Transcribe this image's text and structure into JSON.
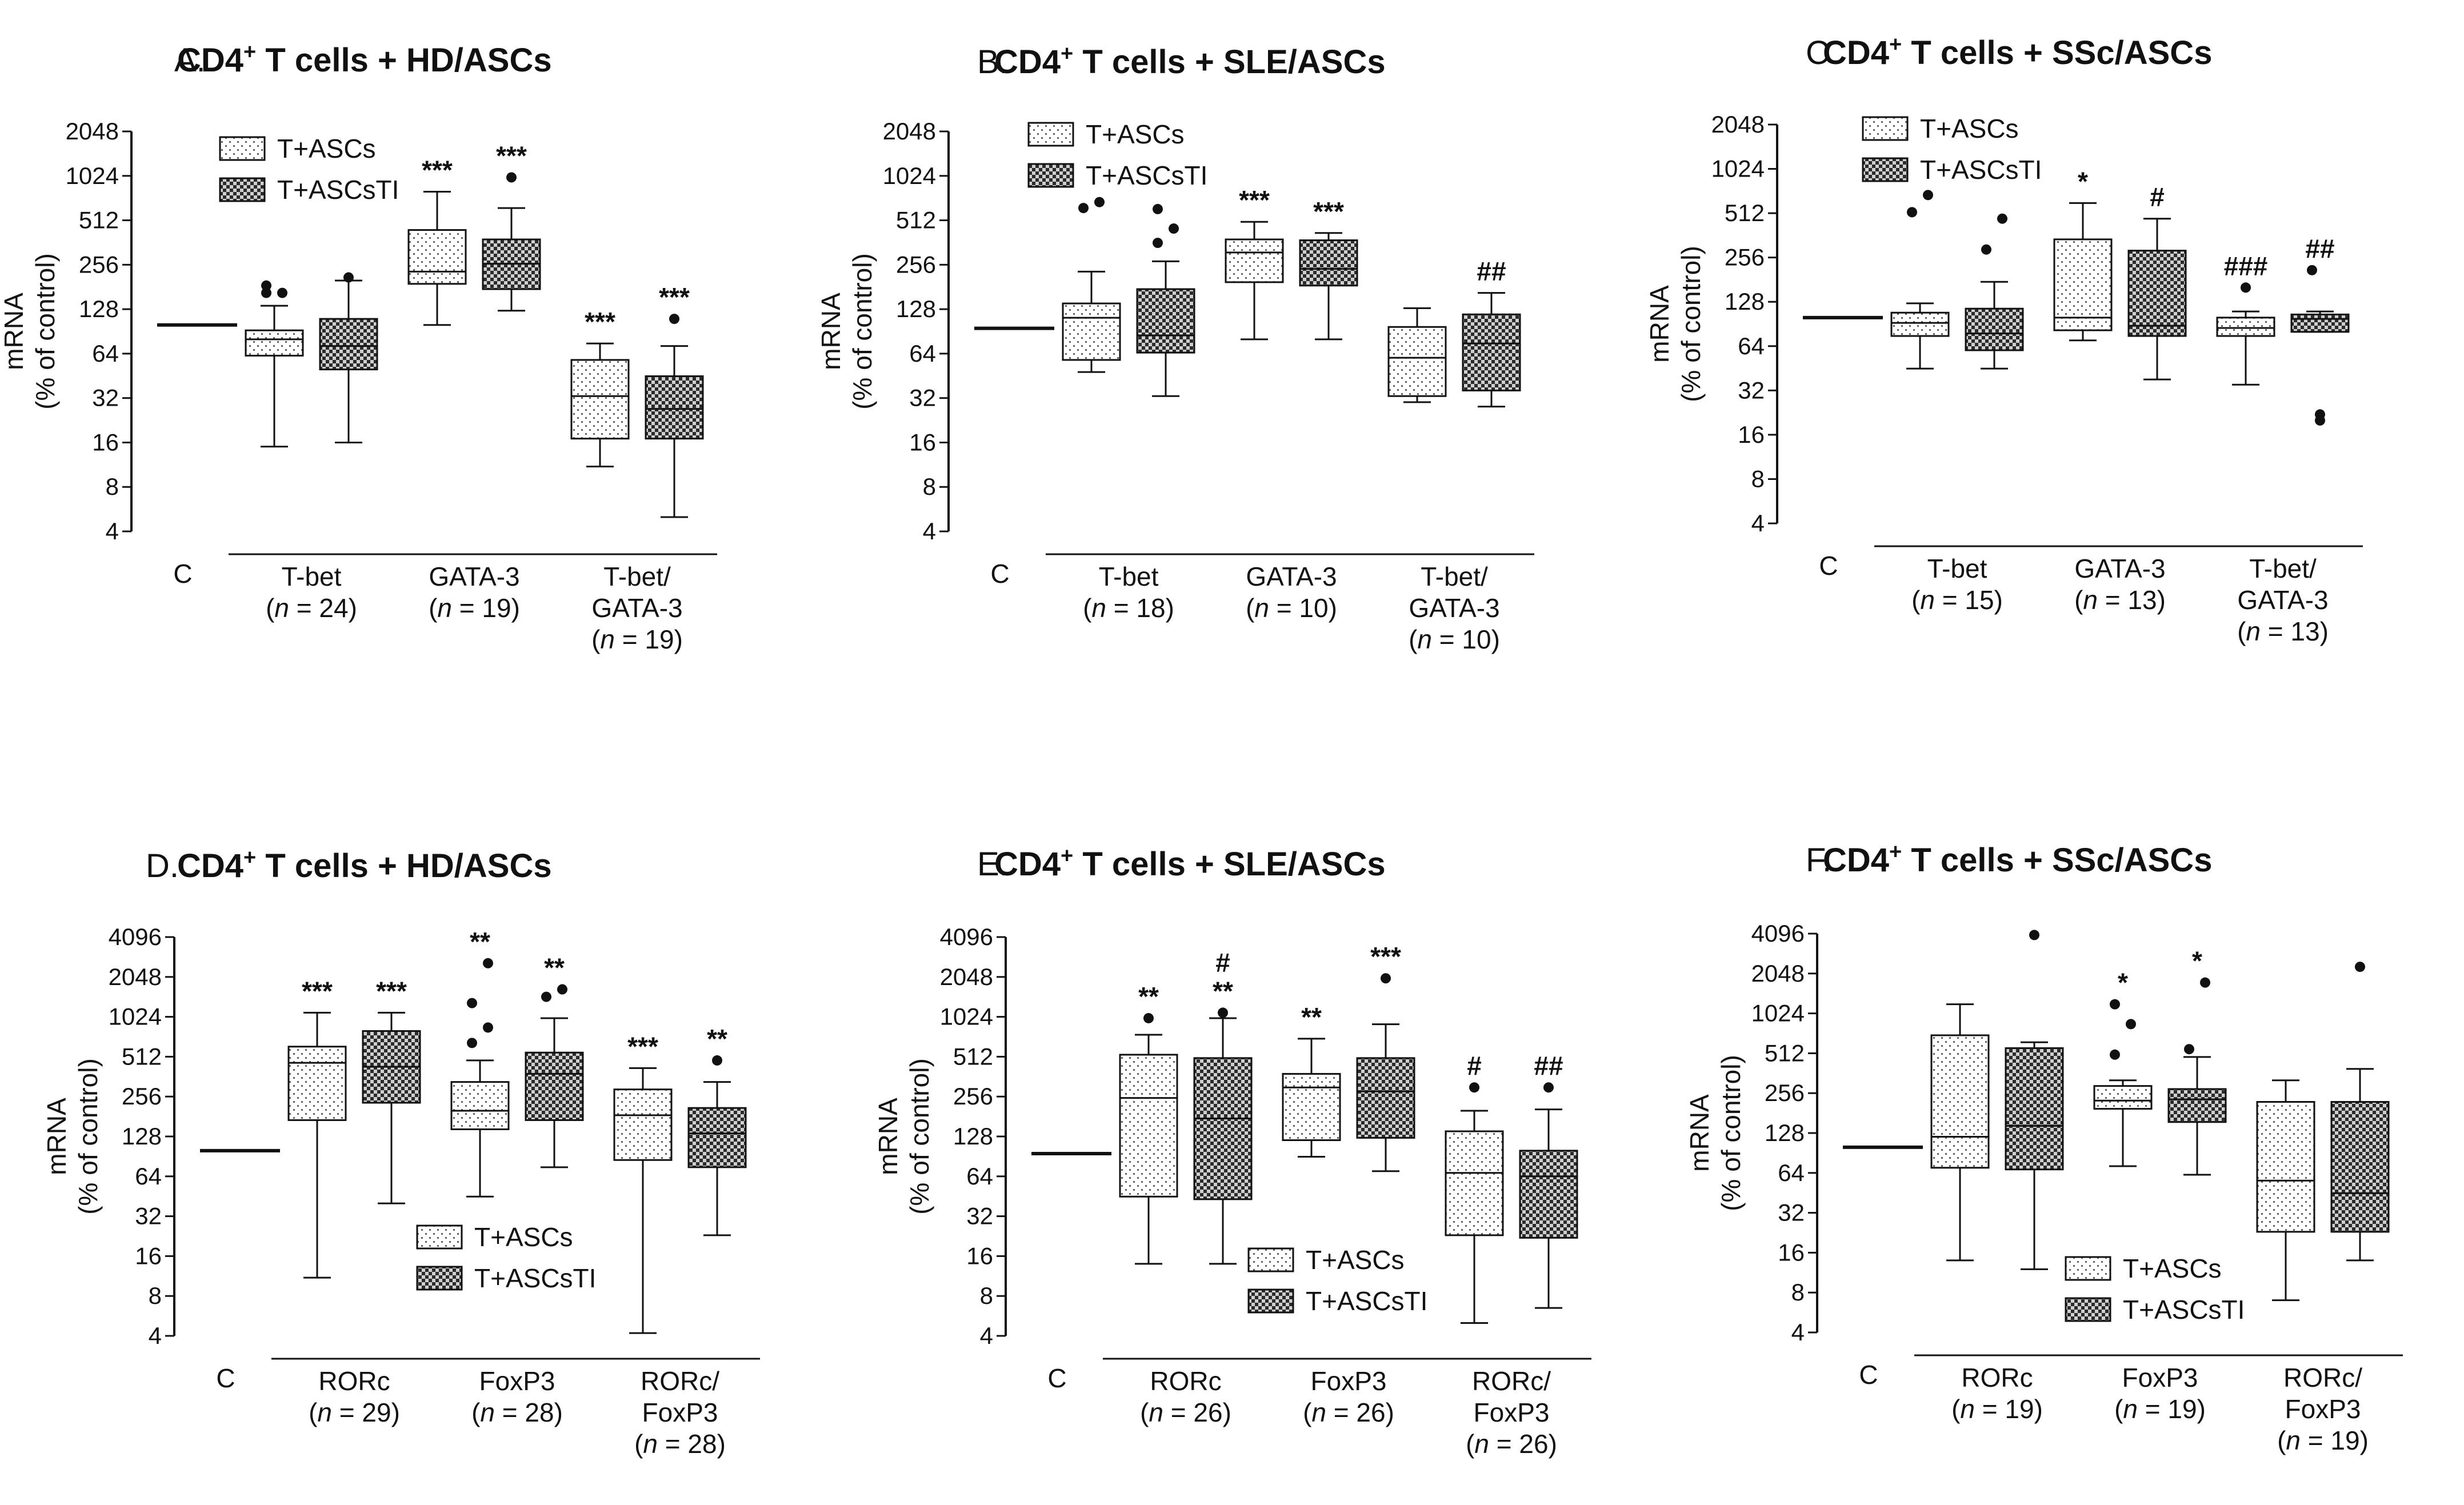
{
  "legend": {
    "series": [
      {
        "name": "T+ASCs",
        "pattern": "dots"
      },
      {
        "name": "T+ASCsTI",
        "pattern": "checker"
      }
    ]
  },
  "colors": {
    "ink": "#111111",
    "dots_fill": "#ffffff",
    "checker_dark": "#2b2b2b",
    "checker_light": "#d0d0d0"
  },
  "chart_data": [
    {
      "id": "A",
      "type": "box",
      "letter": "A.",
      "title": {
        "pre": "CD4",
        "sup": "+",
        "post": " T cells + HD/ASCs"
      },
      "ylabel": [
        "mRNA",
        "(% of control)"
      ],
      "yscale": "log2",
      "ylim": [
        4,
        2048
      ],
      "yticks": [
        "4",
        "8",
        "16",
        "32",
        "64",
        "128",
        "256",
        "512",
        "1024",
        "2048"
      ],
      "control": {
        "label": "C",
        "value": 100
      },
      "legend_position": "top-left",
      "groups": [
        {
          "name": [
            "T-bet"
          ],
          "n": "24",
          "boxes": [
            {
              "series": "T+ASCs",
              "min": 15,
              "q1": 62,
              "median": 80,
              "q3": 92,
              "max": 135,
              "outliers": [
                185,
                165,
                165
              ],
              "sig": ""
            },
            {
              "series": "T+ASCsTI",
              "min": 16,
              "q1": 50,
              "median": 72,
              "q3": 110,
              "max": 200,
              "outliers": [
                210
              ],
              "sig": ""
            }
          ]
        },
        {
          "name": [
            "GATA-3"
          ],
          "n": "19",
          "boxes": [
            {
              "series": "T+ASCs",
              "min": 100,
              "q1": 190,
              "median": 230,
              "q3": 440,
              "max": 800,
              "outliers": [],
              "sig": "***"
            },
            {
              "series": "T+ASCsTI",
              "min": 125,
              "q1": 175,
              "median": 260,
              "q3": 380,
              "max": 620,
              "outliers": [
                1000
              ],
              "sig": "***"
            }
          ]
        },
        {
          "name": [
            "T-bet/",
            "GATA-3"
          ],
          "n": "19",
          "boxes": [
            {
              "series": "T+ASCs",
              "min": 11,
              "q1": 17,
              "median": 33,
              "q3": 58,
              "max": 75,
              "outliers": [],
              "sig": "***"
            },
            {
              "series": "T+ASCsTI",
              "min": 5,
              "q1": 17,
              "median": 27,
              "q3": 45,
              "max": 72,
              "outliers": [
                110
              ],
              "sig": "***"
            }
          ]
        }
      ]
    },
    {
      "id": "B",
      "type": "box",
      "letter": "B.",
      "title": {
        "pre": "CD4",
        "sup": "+",
        "post": " T cells + SLE/ASCs"
      },
      "ylabel": [
        "mRNA",
        "(% of control)"
      ],
      "yscale": "log2",
      "ylim": [
        4,
        2048
      ],
      "yticks": [
        "4",
        "8",
        "16",
        "32",
        "64",
        "128",
        "256",
        "512",
        "1024",
        "2048"
      ],
      "control": {
        "label": "C",
        "value": 95
      },
      "legend_position": "top-left",
      "groups": [
        {
          "name": [
            "T-bet"
          ],
          "n": "18",
          "boxes": [
            {
              "series": "T+ASCs",
              "min": 48,
              "q1": 58,
              "median": 112,
              "q3": 140,
              "max": 230,
              "outliers": [
                620,
                680
              ],
              "sig": ""
            },
            {
              "series": "T+ASCsTI",
              "min": 33,
              "q1": 65,
              "median": 85,
              "q3": 175,
              "max": 270,
              "outliers": [
                360,
                450,
                610
              ],
              "sig": ""
            }
          ]
        },
        {
          "name": [
            "GATA-3"
          ],
          "n": "10",
          "boxes": [
            {
              "series": "T+ASCs",
              "min": 80,
              "q1": 195,
              "median": 310,
              "q3": 380,
              "max": 500,
              "outliers": [],
              "sig": "***"
            },
            {
              "series": "T+ASCsTI",
              "min": 80,
              "q1": 185,
              "median": 240,
              "q3": 375,
              "max": 420,
              "outliers": [],
              "sig": "***"
            }
          ]
        },
        {
          "name": [
            "T-bet/",
            "GATA-3"
          ],
          "n": "10",
          "boxes": [
            {
              "series": "T+ASCs",
              "min": 30,
              "q1": 33,
              "median": 60,
              "q3": 97,
              "max": 130,
              "outliers": [],
              "sig": ""
            },
            {
              "series": "T+ASCsTI",
              "min": 28,
              "q1": 36,
              "median": 75,
              "q3": 118,
              "max": 165,
              "outliers": [],
              "sig": "##"
            }
          ]
        }
      ]
    },
    {
      "id": "C",
      "type": "box",
      "letter": "C.",
      "title": {
        "pre": "CD4",
        "sup": "+",
        "post": " T cells + SSc/ASCs"
      },
      "ylabel": [
        "mRNA",
        "(% of control)"
      ],
      "yscale": "log2",
      "ylim": [
        4,
        2048
      ],
      "yticks": [
        "4",
        "8",
        "16",
        "32",
        "64",
        "128",
        "256",
        "512",
        "1024",
        "2048"
      ],
      "control": {
        "label": "C",
        "value": 100
      },
      "legend_position": "top-left",
      "groups": [
        {
          "name": [
            "T-bet"
          ],
          "n": "15",
          "boxes": [
            {
              "series": "T+ASCs",
              "min": 45,
              "q1": 75,
              "median": 92,
              "q3": 108,
              "max": 125,
              "outliers": [
                520,
                680
              ],
              "sig": ""
            },
            {
              "series": "T+ASCsTI",
              "min": 45,
              "q1": 60,
              "median": 78,
              "q3": 115,
              "max": 175,
              "outliers": [
                290,
                470
              ],
              "sig": ""
            }
          ]
        },
        {
          "name": [
            "GATA-3"
          ],
          "n": "13",
          "boxes": [
            {
              "series": "T+ASCs",
              "min": 70,
              "q1": 82,
              "median": 100,
              "q3": 340,
              "max": 600,
              "outliers": [],
              "sig": "*"
            },
            {
              "series": "T+ASCsTI",
              "min": 38,
              "q1": 75,
              "median": 88,
              "q3": 285,
              "max": 470,
              "outliers": [],
              "sig": "#"
            }
          ]
        },
        {
          "name": [
            "T-bet/",
            "GATA-3"
          ],
          "n": "13",
          "boxes": [
            {
              "series": "T+ASCs",
              "min": 35,
              "q1": 75,
              "median": 85,
              "q3": 100,
              "max": 110,
              "outliers": [
                160
              ],
              "sig": "###"
            },
            {
              "series": "T+ASCsTI",
              "min": 80,
              "q1": 80,
              "median": 98,
              "q3": 105,
              "max": 110,
              "outliers": [
                20,
                22,
                210
              ],
              "sig": "##"
            }
          ]
        }
      ]
    },
    {
      "id": "D",
      "type": "box",
      "letter": "D.",
      "title": {
        "pre": "CD4",
        "sup": "+",
        "post": " T cells + HD/ASCs"
      },
      "ylabel": [
        "mRNA",
        "(% of control)"
      ],
      "yscale": "log2",
      "ylim": [
        4,
        4096
      ],
      "yticks": [
        "4",
        "8",
        "16",
        "32",
        "64",
        "128",
        "256",
        "512",
        "1024",
        "2048",
        "4096"
      ],
      "control": {
        "label": "C",
        "value": 100
      },
      "legend_position": "lower-center",
      "groups": [
        {
          "name": [
            "RORc"
          ],
          "n": "29",
          "boxes": [
            {
              "series": "T+ASCs",
              "min": 11,
              "q1": 170,
              "median": 460,
              "q3": 610,
              "max": 1100,
              "outliers": [],
              "sig": "***"
            },
            {
              "series": "T+ASCsTI",
              "min": 40,
              "q1": 230,
              "median": 430,
              "q3": 800,
              "max": 1100,
              "outliers": [],
              "sig": "***"
            }
          ]
        },
        {
          "name": [
            "FoxP3"
          ],
          "n": "28",
          "boxes": [
            {
              "series": "T+ASCs",
              "min": 45,
              "q1": 145,
              "median": 200,
              "q3": 330,
              "max": 480,
              "outliers": [
                650,
                850,
                1300,
                2600
              ],
              "sig": "**"
            },
            {
              "series": "T+ASCsTI",
              "min": 75,
              "q1": 170,
              "median": 380,
              "q3": 550,
              "max": 1000,
              "outliers": [
                1450,
                1650
              ],
              "sig": "**"
            }
          ]
        },
        {
          "name": [
            "RORc/",
            "FoxP3"
          ],
          "n": "28",
          "boxes": [
            {
              "series": "T+ASCs",
              "min": 4.2,
              "q1": 85,
              "median": 185,
              "q3": 290,
              "max": 420,
              "outliers": [],
              "sig": "***"
            },
            {
              "series": "T+ASCsTI",
              "min": 23,
              "q1": 75,
              "median": 135,
              "q3": 210,
              "max": 330,
              "outliers": [
                480
              ],
              "sig": "**"
            }
          ]
        }
      ]
    },
    {
      "id": "E",
      "type": "box",
      "letter": "E.",
      "title": {
        "pre": "CD4",
        "sup": "+",
        "post": " T cells + SLE/ASCs"
      },
      "ylabel": [
        "mRNA",
        "(% of control)"
      ],
      "yscale": "log2",
      "ylim": [
        4,
        4096
      ],
      "yticks": [
        "4",
        "8",
        "16",
        "32",
        "64",
        "128",
        "256",
        "512",
        "1024",
        "2048",
        "4096"
      ],
      "control": {
        "label": "C",
        "value": 95
      },
      "legend_position": "lower-center",
      "groups": [
        {
          "name": [
            "RORc"
          ],
          "n": "26",
          "boxes": [
            {
              "series": "T+ASCs",
              "min": 14,
              "q1": 45,
              "median": 250,
              "q3": 530,
              "max": 750,
              "outliers": [
                1000
              ],
              "sig": "**"
            },
            {
              "series": "T+ASCsTI",
              "min": 14,
              "q1": 43,
              "median": 175,
              "q3": 500,
              "max": 1000,
              "outliers": [
                1100
              ],
              "sig": "**",
              "sig2": "#"
            }
          ]
        },
        {
          "name": [
            "FoxP3"
          ],
          "n": "26",
          "boxes": [
            {
              "series": "T+ASCs",
              "min": 90,
              "q1": 120,
              "median": 300,
              "q3": 380,
              "max": 700,
              "outliers": [],
              "sig": "**"
            },
            {
              "series": "T+ASCsTI",
              "min": 70,
              "q1": 125,
              "median": 280,
              "q3": 500,
              "max": 900,
              "outliers": [
                2000
              ],
              "sig": "***"
            }
          ]
        },
        {
          "name": [
            "RORc/",
            "FoxP3"
          ],
          "n": "26",
          "boxes": [
            {
              "series": "T+ASCs",
              "min": 5,
              "q1": 23,
              "median": 68,
              "q3": 140,
              "max": 200,
              "outliers": [
                300
              ],
              "sig": "#"
            },
            {
              "series": "T+ASCsTI",
              "min": 6.5,
              "q1": 22,
              "median": 64,
              "q3": 100,
              "max": 205,
              "outliers": [
                300
              ],
              "sig": "##"
            }
          ]
        }
      ]
    },
    {
      "id": "F",
      "type": "box",
      "letter": "F.",
      "title": {
        "pre": "CD4",
        "sup": "+",
        "post": " T cells + SSc/ASCs"
      },
      "ylabel": [
        "mRNA",
        "(% of control)"
      ],
      "yscale": "log2",
      "ylim": [
        4,
        4096
      ],
      "yticks": [
        "4",
        "8",
        "16",
        "32",
        "64",
        "128",
        "256",
        "512",
        "1024",
        "2048",
        "4096"
      ],
      "control": {
        "label": "C",
        "value": 100
      },
      "legend_position": "lower-center",
      "groups": [
        {
          "name": [
            "RORc"
          ],
          "n": "19",
          "boxes": [
            {
              "series": "T+ASCs",
              "min": 14,
              "q1": 70,
              "median": 120,
              "q3": 700,
              "max": 1200,
              "outliers": [],
              "sig": ""
            },
            {
              "series": "T+ASCsTI",
              "min": 12,
              "q1": 68,
              "median": 145,
              "q3": 560,
              "max": 620,
              "outliers": [
                4000
              ],
              "sig": ""
            }
          ]
        },
        {
          "name": [
            "FoxP3"
          ],
          "n": "19",
          "boxes": [
            {
              "series": "T+ASCs",
              "min": 72,
              "q1": 195,
              "median": 225,
              "q3": 290,
              "max": 320,
              "outliers": [
                500,
                850,
                1200
              ],
              "sig": "*"
            },
            {
              "series": "T+ASCsTI",
              "min": 62,
              "q1": 155,
              "median": 230,
              "q3": 275,
              "max": 480,
              "outliers": [
                550,
                1750
              ],
              "sig": "*"
            }
          ]
        },
        {
          "name": [
            "RORc/",
            "FoxP3"
          ],
          "n": "19",
          "boxes": [
            {
              "series": "T+ASCs",
              "min": 7,
              "q1": 23,
              "median": 56,
              "q3": 220,
              "max": 320,
              "outliers": [],
              "sig": ""
            },
            {
              "series": "T+ASCsTI",
              "min": 14,
              "q1": 23,
              "median": 45,
              "q3": 220,
              "max": 390,
              "outliers": [
                2300
              ],
              "sig": ""
            }
          ]
        }
      ]
    }
  ]
}
